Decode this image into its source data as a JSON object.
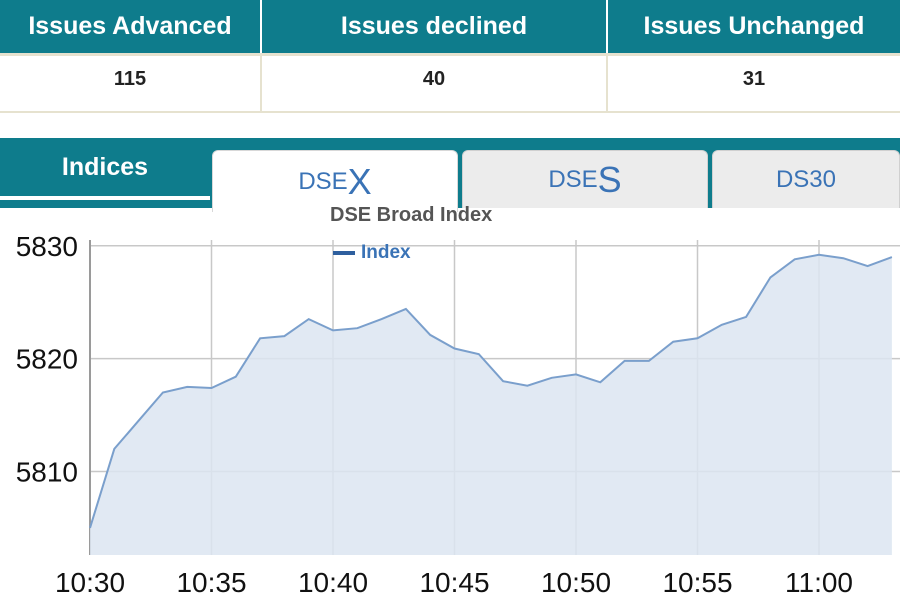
{
  "issues": {
    "headers": [
      "Issues Advanced",
      "Issues declined",
      "Issues Unchanged"
    ],
    "values": [
      "115",
      "40",
      "31"
    ]
  },
  "tabs": {
    "section_label": "Indices",
    "items": [
      {
        "prefix": "DSE",
        "suffix": "X",
        "active": true
      },
      {
        "prefix": "DSE",
        "suffix": "S",
        "active": false
      },
      {
        "label": "DS30",
        "active": false
      }
    ]
  },
  "colors": {
    "header_bg": "#0e7c8c",
    "line": "#7a9fcc",
    "area": "#dce5f1",
    "tab_text": "#3a73b6"
  },
  "chart_data": {
    "type": "area",
    "title": "DSE Broad Index",
    "series": [
      {
        "name": "Index",
        "x": [
          "10:30",
          "10:31",
          "10:32",
          "10:33",
          "10:34",
          "10:35",
          "10:36",
          "10:37",
          "10:38",
          "10:39",
          "10:40",
          "10:41",
          "10:42",
          "10:43",
          "10:44",
          "10:45",
          "10:46",
          "10:47",
          "10:48",
          "10:49",
          "10:50",
          "10:51",
          "10:52",
          "10:53",
          "10:54",
          "10:55",
          "10:56",
          "10:57",
          "10:58",
          "10:59",
          "11:00",
          "11:01",
          "11:02",
          "11:03"
        ],
        "values": [
          5805,
          5812,
          5814.5,
          5817,
          5817.5,
          5817.4,
          5818.4,
          5821.8,
          5822,
          5823.5,
          5822.5,
          5822.7,
          5823.5,
          5824.4,
          5822.1,
          5820.9,
          5820.4,
          5818,
          5817.6,
          5818.3,
          5818.6,
          5817.9,
          5819.8,
          5819.8,
          5821.5,
          5821.8,
          5823,
          5823.7,
          5827.2,
          5828.8,
          5829.2,
          5828.9,
          5828.2,
          5829
        ]
      }
    ],
    "x_ticks": [
      "10:30",
      "10:35",
      "10:40",
      "10:45",
      "10:50",
      "10:55",
      "11:00"
    ],
    "y_ticks": [
      5810,
      5820,
      5830
    ],
    "ylim": [
      5802.6,
      5831.4
    ],
    "grid": true,
    "legend": "top"
  }
}
